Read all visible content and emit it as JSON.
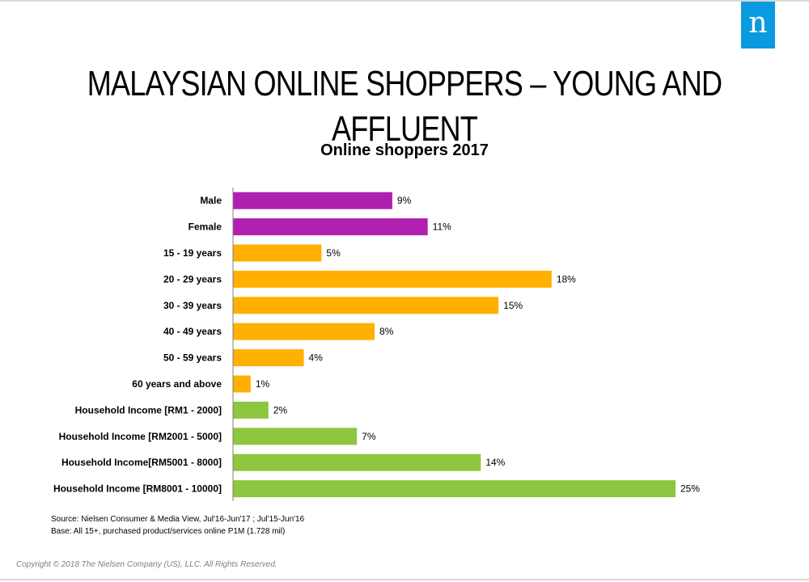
{
  "slide": {
    "title": "MALAYSIAN ONLINE SHOPPERS – YOUNG AND AFFLUENT",
    "logo_letter": "n",
    "source_line1": "Source: Nielsen Consumer & Media View, Jul'16-Jun'17 ; Jul'15-Jun'16",
    "source_line2": "Base: All 15+,  purchased product/services  online P1M (1.728 mil)",
    "copyright": "Copyright © 2018 The Nielsen Company (US), LLC. All Rights Reserved."
  },
  "chart_data": {
    "type": "bar",
    "orientation": "horizontal",
    "title": "Online shoppers 2017",
    "categories": [
      "Male",
      "Female",
      "15 - 19 years",
      "20 - 29 years",
      "30 - 39 years",
      "40 - 49 years",
      "50 - 59 years",
      "60 years and above",
      "Household Income [RM1 - 2000]",
      "Household Income [RM2001  - 5000]",
      "Household Income[RM5001  - 8000]",
      "Household Income [RM8001  - 10000]"
    ],
    "values": [
      9,
      11,
      5,
      18,
      15,
      8,
      4,
      1,
      2,
      7,
      14,
      25
    ],
    "value_labels": [
      "9%",
      "11%",
      "5%",
      "18%",
      "15%",
      "8%",
      "4%",
      "1%",
      "2%",
      "7%",
      "14%",
      "25%"
    ],
    "groups": [
      "gender",
      "gender",
      "age",
      "age",
      "age",
      "age",
      "age",
      "age",
      "income",
      "income",
      "income",
      "income"
    ],
    "group_colors": {
      "gender": "#b020b0",
      "age": "#ffb000",
      "income": "#8dc63f"
    },
    "xlim": [
      0,
      25
    ],
    "grid": false,
    "legend": "none"
  }
}
